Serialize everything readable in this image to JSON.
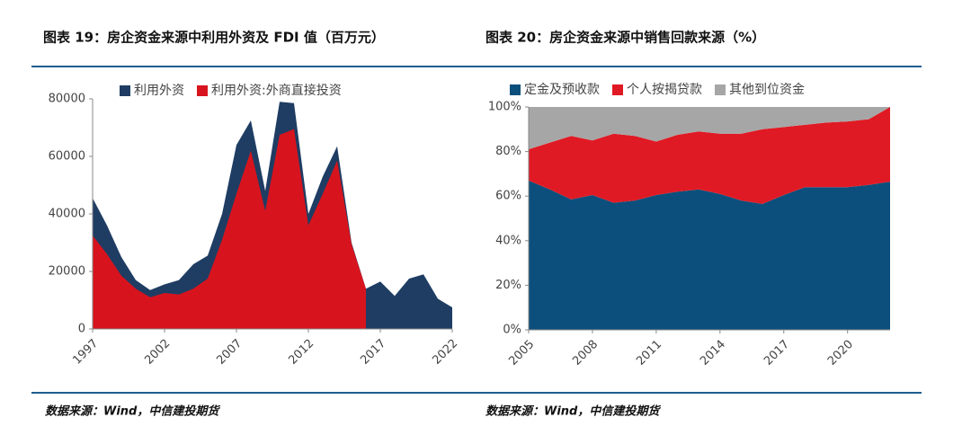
{
  "chart_data": [
    {
      "type": "area",
      "title": "图表 19：房企资金来源中利用外资及 FDI 值（百万元）",
      "source": "数据来源：Wind，中信建投期货",
      "x": [
        1997,
        1998,
        1999,
        2000,
        2001,
        2002,
        2003,
        2004,
        2005,
        2006,
        2007,
        2008,
        2009,
        2010,
        2011,
        2012,
        2013,
        2014,
        2015,
        2016,
        2017,
        2018,
        2019,
        2020,
        2021,
        2022
      ],
      "series": [
        {
          "name": "利用外资",
          "color": "#1f3d63",
          "values": [
            45500,
            36000,
            25000,
            17000,
            13500,
            15500,
            17000,
            22500,
            25500,
            40000,
            64000,
            72500,
            48000,
            79000,
            78500,
            40000,
            53000,
            63500,
            30000,
            14000,
            16500,
            11500,
            17500,
            19000,
            10500,
            7500
          ]
        },
        {
          "name": "利用外资:外商直接投资",
          "color": "#d7141e",
          "values": [
            32500,
            26000,
            18500,
            14000,
            11000,
            12500,
            12000,
            14000,
            17500,
            31000,
            47000,
            62000,
            41000,
            67500,
            69500,
            36000,
            47000,
            58500,
            29500,
            14000,
            null,
            null,
            null,
            null,
            null,
            null
          ]
        }
      ],
      "xlim": [
        1997,
        2022
      ],
      "xticks": [
        1997,
        2002,
        2007,
        2012,
        2017,
        2022
      ],
      "ylim": [
        0,
        80000
      ],
      "yticks": [
        0,
        20000,
        40000,
        60000,
        80000
      ],
      "stacked": false,
      "grid": false
    },
    {
      "type": "area",
      "title": "图表 20：房企资金来源中销售回款来源（%）",
      "source": "数据来源：Wind，中信建投期货",
      "x": [
        2005,
        2006,
        2007,
        2008,
        2009,
        2010,
        2011,
        2012,
        2013,
        2014,
        2015,
        2016,
        2017,
        2018,
        2019,
        2020,
        2021,
        2022
      ],
      "series": [
        {
          "name": "定金及预收款",
          "color": "#0d4f7c",
          "values": [
            67,
            63,
            58.5,
            60.5,
            57,
            58,
            60.5,
            62,
            63,
            61,
            58,
            56.5,
            60.5,
            64,
            64,
            64,
            65,
            66.5
          ]
        },
        {
          "name": "个人按揭贷款",
          "color": "#e01a24",
          "values": [
            14,
            21,
            28.5,
            24.5,
            31,
            29,
            24,
            25.5,
            26,
            27,
            30,
            33.5,
            30.5,
            28,
            29,
            29.5,
            29.5,
            33.5
          ]
        },
        {
          "name": "其他到位资金",
          "color": "#a6a6a6",
          "values": [
            19,
            16,
            13,
            15,
            12,
            13,
            15.5,
            12.5,
            11,
            12,
            12,
            10,
            9,
            8,
            7,
            6.5,
            5.5,
            0
          ]
        }
      ],
      "xlim": [
        2005,
        2022
      ],
      "xticks": [
        2005,
        2008,
        2011,
        2014,
        2017,
        2020
      ],
      "ylim": [
        0,
        100
      ],
      "yticks": [
        {
          "value": 0,
          "label": "0%"
        },
        {
          "value": 20,
          "label": "20%"
        },
        {
          "value": 40,
          "label": "40%"
        },
        {
          "value": 60,
          "label": "60%"
        },
        {
          "value": 80,
          "label": "80%"
        },
        {
          "value": 100,
          "label": "100%"
        }
      ],
      "stacked": true,
      "grid": false
    }
  ]
}
